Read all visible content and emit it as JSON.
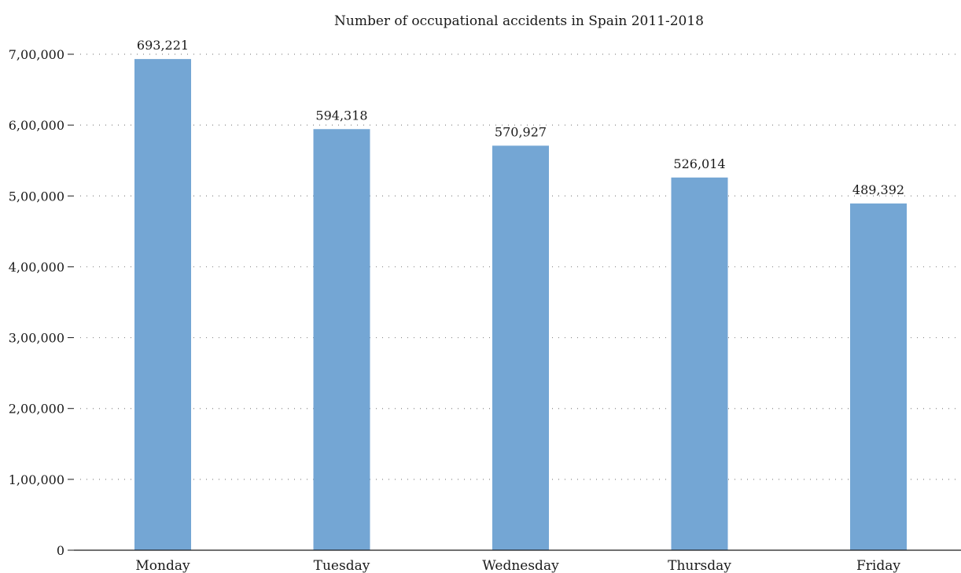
{
  "chart_data": {
    "type": "bar",
    "title": "Number of occupational accidents in Spain 2011-2018",
    "xlabel": "",
    "ylabel": "",
    "categories": [
      "Monday",
      "Tuesday",
      "Wednesday",
      "Thursday",
      "Friday"
    ],
    "values": [
      693221,
      594318,
      570927,
      526014,
      489392
    ],
    "data_labels": [
      "693,221",
      "594,318",
      "570,927",
      "526,014",
      "489,392"
    ],
    "ylim": [
      0,
      700000
    ],
    "yticks": [
      0,
      100000,
      200000,
      300000,
      400000,
      500000,
      600000,
      700000
    ],
    "ytick_labels": [
      "0",
      "1,00,000",
      "2,00,000",
      "3,00,000",
      "4,00,000",
      "5,00,000",
      "6,00,000",
      "7,00,000"
    ],
    "grid": true,
    "grid_style": "dotted horizontal",
    "legend": "none",
    "bar_color": "#74a6d4"
  }
}
